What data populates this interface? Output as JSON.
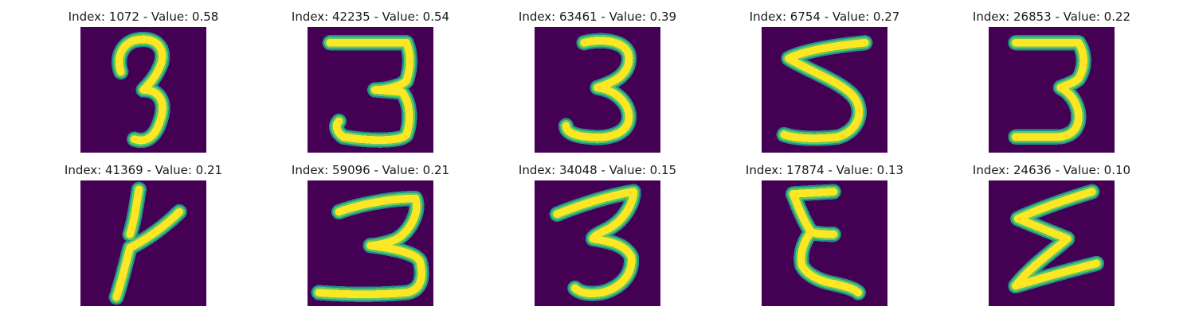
{
  "figure": {
    "background": "#ffffff",
    "cmap": "viridis",
    "images": [
      {
        "title": "Index: 1072 - Value: 0.58",
        "index": 1072,
        "value": 0.58,
        "digit_shape": "3"
      },
      {
        "title": "Index: 42235 - Value: 0.54",
        "index": 42235,
        "value": 0.54,
        "digit_shape": "3"
      },
      {
        "title": "Index: 63461 - Value: 0.39",
        "index": 63461,
        "value": 0.39,
        "digit_shape": "3"
      },
      {
        "title": "Index: 6754 - Value: 0.27",
        "index": 6754,
        "value": 0.27,
        "digit_shape": "5"
      },
      {
        "title": "Index: 26853 - Value: 0.22",
        "index": 26853,
        "value": 0.22,
        "digit_shape": "3"
      },
      {
        "title": "Index: 41369 - Value: 0.21",
        "index": 41369,
        "value": 0.21,
        "digit_shape": "4"
      },
      {
        "title": "Index: 59096 - Value: 0.21",
        "index": 59096,
        "value": 0.21,
        "digit_shape": "3"
      },
      {
        "title": "Index: 34048 - Value: 0.15",
        "index": 34048,
        "value": 0.15,
        "digit_shape": "3"
      },
      {
        "title": "Index: 17874 - Value: 0.13",
        "index": 17874,
        "value": 0.13,
        "digit_shape": "E"
      },
      {
        "title": "Index: 24636 - Value: 0.10",
        "index": 24636,
        "value": 0.1,
        "digit_shape": "Z"
      }
    ],
    "colors": {
      "background_cell": "#440154",
      "stroke_outer": "#21918c",
      "stroke_mid": "#5ec962",
      "stroke_core": "#fde725"
    }
  }
}
